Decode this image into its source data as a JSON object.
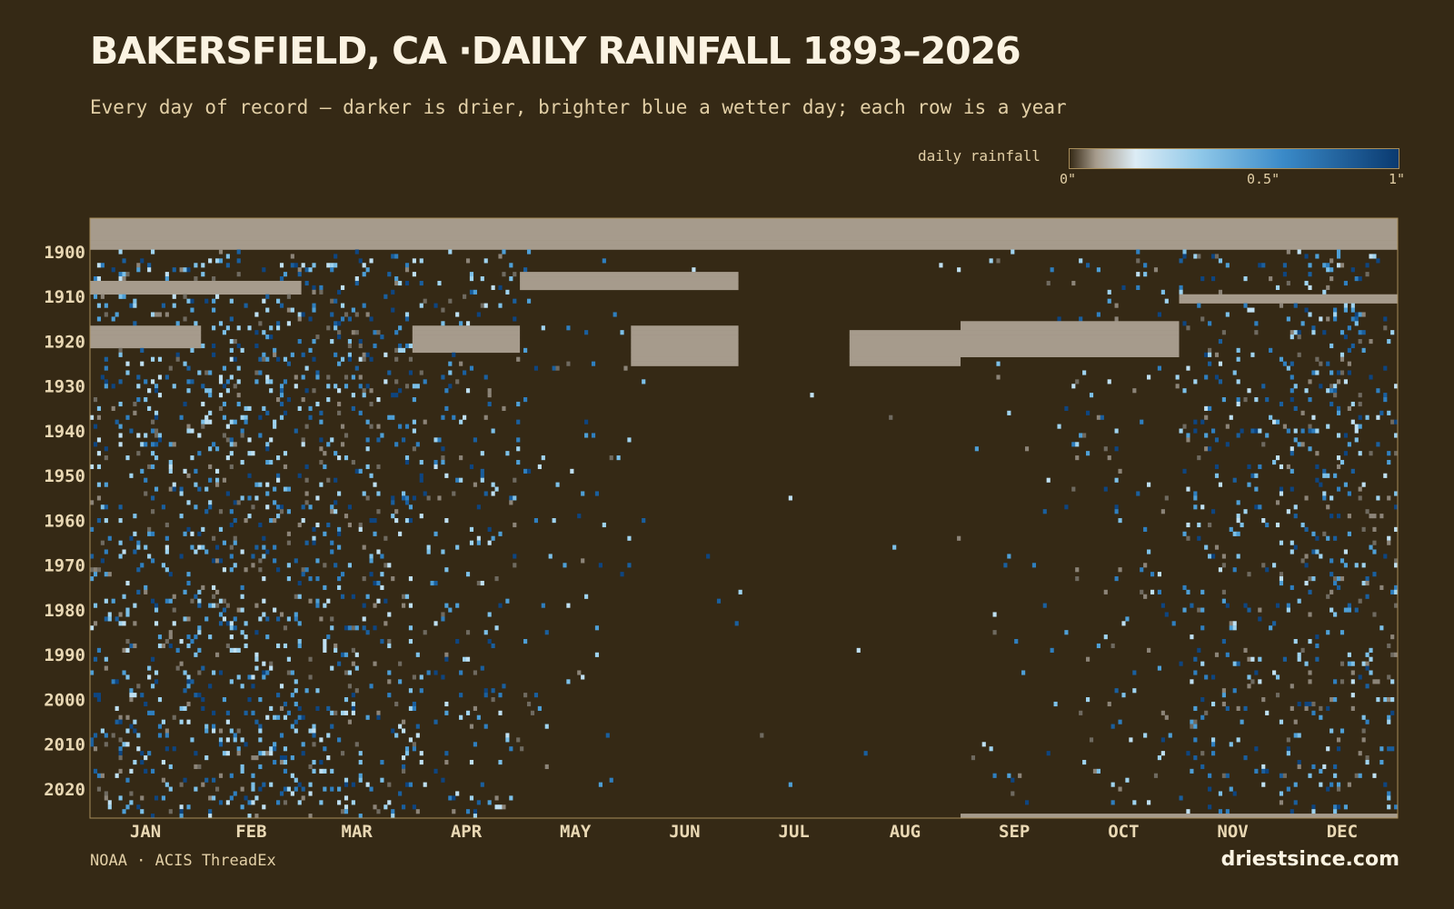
{
  "header": {
    "title": "BAKERSFIELD, CA ·DAILY RAINFALL 1893–2026",
    "subtitle": "Every day of record — darker is drier, brighter blue a wetter day; each row is a year"
  },
  "legend": {
    "label": "daily rainfall",
    "ticks": [
      "0\"",
      "0.5\"",
      "1\""
    ],
    "colors": [
      "#352915",
      "#a69b8c",
      "#dcecf5",
      "#8ec7e8",
      "#3a8ac8",
      "#0a3a70"
    ]
  },
  "colors": {
    "background": "#352915",
    "missing": "#a69b8c",
    "axis": "#a88d5a",
    "text": "#e9d8b4"
  },
  "chart_data": {
    "type": "heatmap",
    "title": "BAKERSFIELD, CA ·DAILY RAINFALL 1893–2026",
    "x": [
      "JAN",
      "FEB",
      "MAR",
      "APR",
      "MAY",
      "JUN",
      "JUL",
      "AUG",
      "SEP",
      "OCT",
      "NOV",
      "DEC"
    ],
    "y_ticks": [
      1900,
      1910,
      1920,
      1930,
      1940,
      1950,
      1960,
      1970,
      1980,
      1990,
      2000,
      2010,
      2020
    ],
    "ylim": [
      1893,
      2026
    ],
    "value_range_inches": [
      0,
      1
    ],
    "monthly_rain_day_frequency": [
      0.21,
      0.22,
      0.2,
      0.12,
      0.035,
      0.01,
      0.003,
      0.004,
      0.015,
      0.05,
      0.11,
      0.19
    ],
    "missing_periods": [
      {
        "years": [
          1893,
          1899
        ],
        "months": [
          "JAN",
          "DEC"
        ]
      },
      {
        "years": [
          1907,
          1909
        ],
        "months": [
          "JAN",
          "FEB"
        ]
      },
      {
        "years": [
          1905,
          1908
        ],
        "months": [
          "MAY",
          "JUN"
        ]
      },
      {
        "years": [
          1910,
          1911
        ],
        "months": [
          "NOV",
          "DEC"
        ]
      },
      {
        "years": [
          1917,
          1925
        ],
        "months": [
          "JUN",
          "JUN"
        ]
      },
      {
        "years": [
          1916,
          1923
        ],
        "months": [
          "SEP",
          "OCT"
        ]
      },
      {
        "years": [
          1918,
          1925
        ],
        "months": [
          "AUG",
          "AUG"
        ]
      },
      {
        "years": [
          1917,
          1921
        ],
        "months": [
          "JAN",
          "JAN"
        ]
      },
      {
        "years": [
          1917,
          1922
        ],
        "months": [
          "APR",
          "APR"
        ]
      },
      {
        "years": [
          1899,
          1899
        ],
        "months": [
          "JUL",
          "AUG"
        ]
      },
      {
        "years": [
          2026,
          2026
        ],
        "months": [
          "SEP",
          "DEC"
        ]
      }
    ]
  },
  "footer": {
    "source": "NOAA · ACIS ThreadEx",
    "brand": "driestsince.com"
  }
}
